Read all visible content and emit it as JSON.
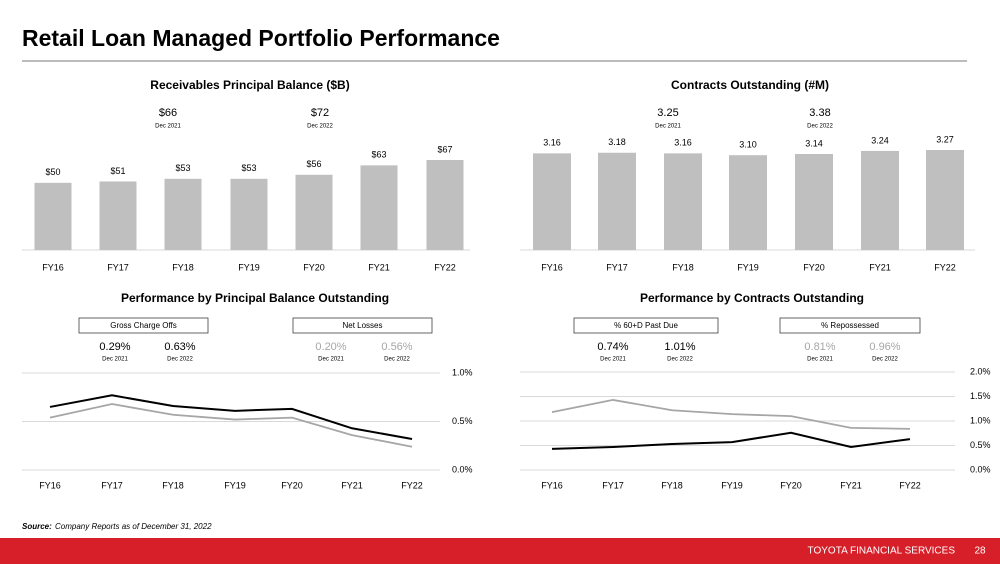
{
  "title": "Retail Loan Managed Portfolio Performance",
  "source_label": "Source:",
  "source": "Company Reports as of December 31, 2022",
  "footer": "TOYOTA FINANCIAL SERVICES",
  "page": 28,
  "chart_data": [
    {
      "type": "bar",
      "title": "Receivables Principal Balance ($B)",
      "color": "#bfbfbf",
      "categories": [
        "FY16",
        "FY17",
        "FY18",
        "FY19",
        "FY20",
        "FY21",
        "FY22"
      ],
      "values": [
        50,
        51,
        53,
        53,
        56,
        63,
        67
      ],
      "value_labels": [
        "$50",
        "$51",
        "$53",
        "$53",
        "$56",
        "$63",
        "$67"
      ],
      "callouts": [
        {
          "text": "$66",
          "date": "Dec 2021"
        },
        {
          "text": "$72",
          "date": "Dec 2022"
        }
      ]
    },
    {
      "type": "bar",
      "title": "Contracts Outstanding (#M)",
      "color": "#bfbfbf",
      "categories": [
        "FY16",
        "FY17",
        "FY18",
        "FY19",
        "FY20",
        "FY21",
        "FY22"
      ],
      "values": [
        3.16,
        3.18,
        3.16,
        3.1,
        3.14,
        3.24,
        3.27
      ],
      "value_labels": [
        "3.16",
        "3.18",
        "3.16",
        "3.10",
        "3.14",
        "3.24",
        "3.27"
      ],
      "callouts": [
        {
          "text": "3.25",
          "date": "Dec 2021"
        },
        {
          "text": "3.38",
          "date": "Dec 2022"
        }
      ]
    },
    {
      "type": "line",
      "title": "Performance by  Principal Balance Outstanding",
      "categories": [
        "FY16",
        "FY17",
        "FY18",
        "FY19",
        "FY20",
        "FY21",
        "FY22"
      ],
      "ylim": [
        0,
        1
      ],
      "yticks": [
        {
          "value": 0,
          "label": "0.0%"
        },
        {
          "value": 0.5,
          "label": "0.5%"
        },
        {
          "value": 1,
          "label": "1.0%"
        }
      ],
      "grid": true,
      "series": [
        {
          "name": "Gross Charge Offs",
          "color": "#000000",
          "values": [
            0.65,
            0.77,
            0.66,
            0.61,
            0.63,
            0.43,
            0.32
          ],
          "callouts": [
            {
              "text": "0.29%",
              "date": "Dec 2021"
            },
            {
              "text": "0.63%",
              "date": "Dec 2022"
            }
          ]
        },
        {
          "name": "Net Losses",
          "color": "#a6a6a6",
          "values": [
            0.54,
            0.68,
            0.57,
            0.52,
            0.54,
            0.36,
            0.24
          ],
          "callouts": [
            {
              "text": "0.20%",
              "date": "Dec 2021"
            },
            {
              "text": "0.56%",
              "date": "Dec 2022"
            }
          ]
        }
      ]
    },
    {
      "type": "line",
      "title": "Performance by  Contracts Outstanding",
      "categories": [
        "FY16",
        "FY17",
        "FY18",
        "FY19",
        "FY20",
        "FY21",
        "FY22"
      ],
      "ylim": [
        0,
        2
      ],
      "yticks": [
        {
          "value": 0,
          "label": "0.0%"
        },
        {
          "value": 0.5,
          "label": "0.5%"
        },
        {
          "value": 1,
          "label": "1.0%"
        },
        {
          "value": 1.5,
          "label": "1.5%"
        },
        {
          "value": 2,
          "label": "2.0%"
        }
      ],
      "grid": true,
      "series": [
        {
          "name": "% 60+D Past Due",
          "color": "#000000",
          "values": [
            0.43,
            0.47,
            0.53,
            0.57,
            0.76,
            0.47,
            0.63
          ],
          "callouts": [
            {
              "text": "0.74%",
              "date": "Dec 2021"
            },
            {
              "text": "1.01%",
              "date": "Dec 2022"
            }
          ]
        },
        {
          "name": "% Repossessed",
          "color": "#a6a6a6",
          "values": [
            1.18,
            1.43,
            1.22,
            1.14,
            1.1,
            0.86,
            0.84
          ],
          "callouts": [
            {
              "text": "0.81%",
              "date": "Dec 2021"
            },
            {
              "text": "0.96%",
              "date": "Dec 2022"
            }
          ]
        }
      ]
    }
  ]
}
